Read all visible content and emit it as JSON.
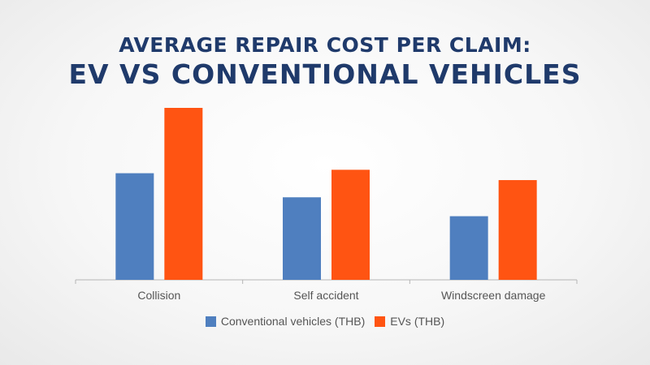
{
  "chart_data": {
    "type": "bar",
    "title_line1": "AVERAGE REPAIR COST PER CLAIM:",
    "title_line2": "EV VS CONVENTIONAL VEHICLES",
    "categories": [
      "Collision",
      "Self accident",
      "Windscreen damage"
    ],
    "series": [
      {
        "name": "Conventional vehicles (THB)",
        "color": "#4f7fbf",
        "values": [
          62,
          48,
          37
        ]
      },
      {
        "name": "EVs (THB)",
        "color": "#ff5412",
        "values": [
          100,
          64,
          58
        ]
      }
    ],
    "ylim": [
      0,
      100
    ],
    "grid": false,
    "legend_position": "bottom"
  }
}
